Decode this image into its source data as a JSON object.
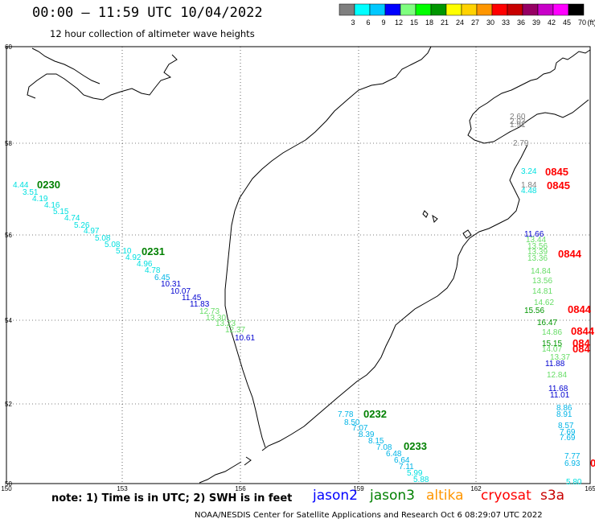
{
  "header": {
    "title": "00:00 – 11:59 UTC 10/04/2022",
    "subtitle": "12 hour collection of altimeter wave heights"
  },
  "legend": {
    "bins": [
      {
        "label": "3",
        "color": "#7f7f7f"
      },
      {
        "label": "6",
        "color": "#00ffff"
      },
      {
        "label": "9",
        "color": "#00c8ff"
      },
      {
        "label": "12",
        "color": "#0000ff"
      },
      {
        "label": "15",
        "color": "#7fff7f"
      },
      {
        "label": "18",
        "color": "#00ff00"
      },
      {
        "label": "21",
        "color": "#009600"
      },
      {
        "label": "24",
        "color": "#ffff00"
      },
      {
        "label": "27",
        "color": "#ffd200"
      },
      {
        "label": "30",
        "color": "#ff9600"
      },
      {
        "label": "33",
        "color": "#ff0000"
      },
      {
        "label": "36",
        "color": "#c80000"
      },
      {
        "label": "39",
        "color": "#960064"
      },
      {
        "label": "42",
        "color": "#c800c8"
      },
      {
        "label": "45",
        "color": "#ff00ff"
      },
      {
        "label": "70",
        "color": "#000000"
      }
    ],
    "unit": "(ft)"
  },
  "axes": {
    "x_ticks": [
      "150",
      "153",
      "156",
      "159",
      "162",
      "165"
    ],
    "y_ticks": [
      "50",
      "52",
      "54",
      "56",
      "58",
      "60"
    ]
  },
  "time_labels": [
    {
      "text": "0230",
      "color": "#008000"
    },
    {
      "text": "0231",
      "color": "#008000"
    },
    {
      "text": "0232",
      "color": "#008000"
    },
    {
      "text": "0233",
      "color": "#008000"
    },
    {
      "text": "0845",
      "color": "#ff0000"
    },
    {
      "text": "0845",
      "color": "#ff0000"
    },
    {
      "text": "0844",
      "color": "#ff0000"
    },
    {
      "text": "0844",
      "color": "#ff0000"
    },
    {
      "text": "0844",
      "color": "#ff0000"
    },
    {
      "text": "084",
      "color": "#ff0000"
    },
    {
      "text": "084",
      "color": "#ff0000"
    },
    {
      "text": "0",
      "color": "#ff0000"
    }
  ],
  "track_a": [
    {
      "v": "4.44",
      "c": "#00e0e0"
    },
    {
      "v": "3.51",
      "c": "#00e0e0"
    },
    {
      "v": "4.19",
      "c": "#00e0e0"
    },
    {
      "v": "4.16",
      "c": "#00e0e0"
    },
    {
      "v": "5.15",
      "c": "#00e0e0"
    },
    {
      "v": "4.74",
      "c": "#00e0e0"
    },
    {
      "v": "5.26",
      "c": "#00e0e0"
    },
    {
      "v": "4.97",
      "c": "#00e0e0"
    },
    {
      "v": "5.08",
      "c": "#00e0e0"
    },
    {
      "v": "5.08",
      "c": "#00e0e0"
    },
    {
      "v": "5.10",
      "c": "#00e0e0"
    },
    {
      "v": "4.92",
      "c": "#00e0e0"
    },
    {
      "v": "4.96",
      "c": "#00e0e0"
    },
    {
      "v": "4.78",
      "c": "#00e0e0"
    },
    {
      "v": "6.45",
      "c": "#00b4e6"
    },
    {
      "v": "10.31",
      "c": "#0000d0"
    },
    {
      "v": "10.07",
      "c": "#0000d0"
    },
    {
      "v": "11.45",
      "c": "#0000d0"
    },
    {
      "v": "11.83",
      "c": "#0000d0"
    },
    {
      "v": "12.73",
      "c": "#66dd66"
    },
    {
      "v": "13.30",
      "c": "#66dd66"
    },
    {
      "v": "13.23",
      "c": "#66dd66"
    },
    {
      "v": "12.37",
      "c": "#66dd66"
    },
    {
      "v": "10.61",
      "c": "#0000d0"
    }
  ],
  "track_b": [
    {
      "v": "7.78",
      "c": "#00b4e6"
    },
    {
      "v": "8.50",
      "c": "#00b4e6"
    },
    {
      "v": "7.07",
      "c": "#00b4e6"
    },
    {
      "v": "8.39",
      "c": "#00b4e6"
    },
    {
      "v": "8.15",
      "c": "#00b4e6"
    },
    {
      "v": "7.08",
      "c": "#00b4e6"
    },
    {
      "v": "6.48",
      "c": "#00b4e6"
    },
    {
      "v": "6.64",
      "c": "#00b4e6"
    },
    {
      "v": "7.11",
      "c": "#00b4e6"
    },
    {
      "v": "5.99",
      "c": "#00e0e0"
    },
    {
      "v": "5.88",
      "c": "#00e0e0"
    }
  ],
  "track_c": [
    {
      "v": "2.60",
      "c": "#7f7f7f"
    },
    {
      "v": "2.03",
      "c": "#7f7f7f"
    },
    {
      "v": "1.91",
      "c": "#7f7f7f"
    },
    {
      "v": "2.79",
      "c": "#7f7f7f"
    },
    {
      "v": "3.24",
      "c": "#00e0e0"
    },
    {
      "v": "1.84",
      "c": "#7f7f7f"
    },
    {
      "v": "4.48",
      "c": "#00e0e0"
    },
    {
      "v": "11.66",
      "c": "#0000d0"
    },
    {
      "v": "13.44",
      "c": "#66dd66"
    },
    {
      "v": "13.56",
      "c": "#66dd66"
    },
    {
      "v": "13.39",
      "c": "#66dd66"
    },
    {
      "v": "13.36",
      "c": "#66dd66"
    },
    {
      "v": "14.84",
      "c": "#66dd66"
    },
    {
      "v": "13.56",
      "c": "#66dd66"
    },
    {
      "v": "14.81",
      "c": "#66dd66"
    },
    {
      "v": "14.62",
      "c": "#66dd66"
    },
    {
      "v": "15.56",
      "c": "#009600"
    },
    {
      "v": "16.47",
      "c": "#009600"
    },
    {
      "v": "14.86",
      "c": "#66dd66"
    },
    {
      "v": "15.15",
      "c": "#009600"
    },
    {
      "v": "14.07",
      "c": "#66dd66"
    },
    {
      "v": "13.37",
      "c": "#66dd66"
    },
    {
      "v": "11.88",
      "c": "#0000d0"
    },
    {
      "v": "12.84",
      "c": "#66dd66"
    },
    {
      "v": "11.68",
      "c": "#0000d0"
    },
    {
      "v": "11.01",
      "c": "#0000d0"
    },
    {
      "v": "8.86",
      "c": "#00b4e6"
    },
    {
      "v": "8.91",
      "c": "#00b4e6"
    },
    {
      "v": "8.57",
      "c": "#00b4e6"
    },
    {
      "v": "7.69",
      "c": "#00b4e6"
    },
    {
      "v": "7.69",
      "c": "#00b4e6"
    },
    {
      "v": "7.77",
      "c": "#00b4e6"
    },
    {
      "v": "6.93",
      "c": "#00b4e6"
    },
    {
      "v": "5.80",
      "c": "#00e0e0"
    }
  ],
  "footer": {
    "note": "note: 1) Time is in UTC; 2) SWH is in feet",
    "credit": "NOAA/NESDIS Center for Satellite Applications and Research    Oct  6 08:29:07 UTC 2022",
    "satellites": [
      {
        "name": "jason2",
        "color": "#0000ff"
      },
      {
        "name": "jason3",
        "color": "#008000"
      },
      {
        "name": "altika",
        "color": "#ff9600"
      },
      {
        "name": "cryosat",
        "color": "#ff0000"
      },
      {
        "name": "s3a",
        "color": "#c80000"
      }
    ]
  }
}
